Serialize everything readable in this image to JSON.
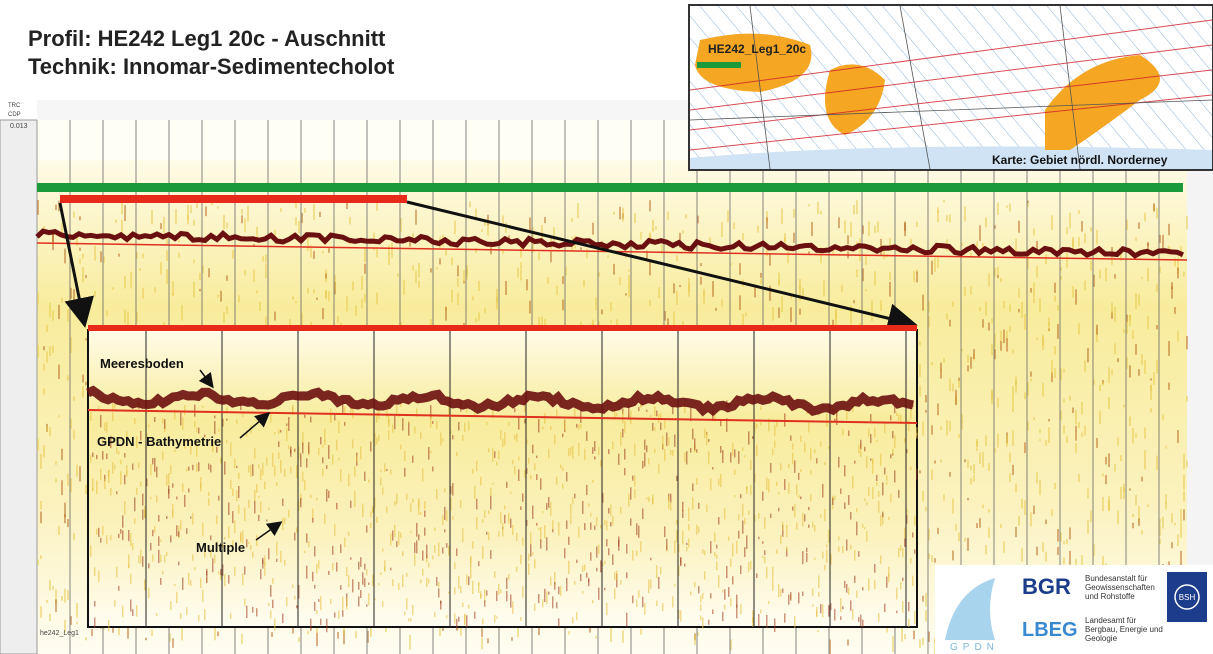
{
  "header": {
    "title": "Profil:  HE242 Leg1 20c - Auschnitt",
    "subtitle": "Technik:  Innomar-Sedimentecholot"
  },
  "profile": {
    "time_label": "0.013",
    "trc": "TRC",
    "cdp": "CDP",
    "footer_label": "he242_Leg1"
  },
  "map": {
    "line_label": "HE242_Leg1_20c",
    "caption": "Karte: Gebiet nördl. Norderney"
  },
  "annotations": {
    "seabed": "Meeresboden",
    "bathymetry": "GPDN - Bathymetrie",
    "multiple": "Multiple"
  },
  "logos": {
    "gpdn": "GPDN",
    "bgr": "BGR",
    "bgr_name": "Bundesanstalt für Geowissenschaften und Rohstoffe",
    "lbeg": "LBEG",
    "lbeg_name": "Landesamt für Bergbau, Energie und Geologie",
    "bsh": "BSH"
  }
}
